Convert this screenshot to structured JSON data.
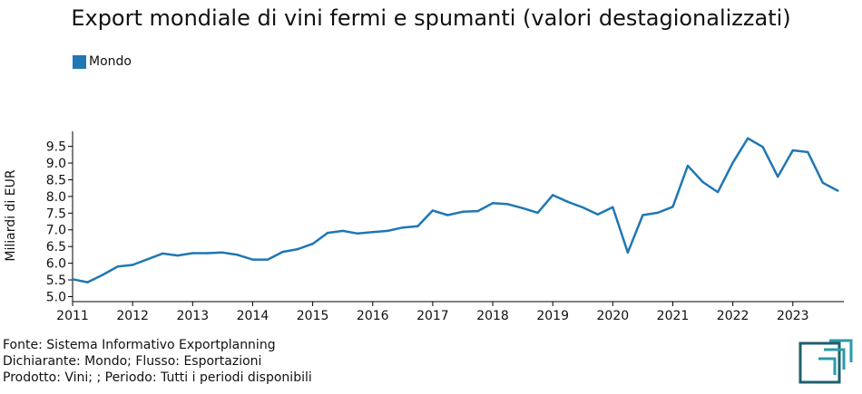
{
  "chart_data": {
    "type": "line",
    "title": "Export mondiale di vini fermi e spumanti (valori destagionalizzati)",
    "ylabel": "Miliardi di EUR",
    "xlabel": "",
    "xlim": [
      2011,
      2023.85
    ],
    "ylim": [
      4.85,
      9.95
    ],
    "yticks": [
      "5.0",
      "5.5",
      "6.0",
      "6.5",
      "7.0",
      "7.5",
      "8.0",
      "8.5",
      "9.0",
      "9.5"
    ],
    "xticks": [
      "2011",
      "2012",
      "2013",
      "2014",
      "2015",
      "2016",
      "2017",
      "2018",
      "2019",
      "2020",
      "2021",
      "2022",
      "2023"
    ],
    "legend_position": "top-left",
    "series": [
      {
        "name": "Mondo",
        "color": "#1f77b4",
        "x": [
          2011.0,
          2011.25,
          2011.5,
          2011.75,
          2012.0,
          2012.25,
          2012.5,
          2012.75,
          2013.0,
          2013.25,
          2013.5,
          2013.75,
          2014.0,
          2014.25,
          2014.5,
          2014.75,
          2015.0,
          2015.25,
          2015.5,
          2015.75,
          2016.0,
          2016.25,
          2016.5,
          2016.75,
          2017.0,
          2017.25,
          2017.5,
          2017.75,
          2018.0,
          2018.25,
          2018.5,
          2018.75,
          2019.0,
          2019.25,
          2019.5,
          2019.75,
          2020.0,
          2020.25,
          2020.5,
          2020.75,
          2021.0,
          2021.25,
          2021.5,
          2021.75,
          2022.0,
          2022.25,
          2022.5,
          2022.75,
          2023.0,
          2023.25,
          2023.5,
          2023.75
        ],
        "values": [
          5.52,
          5.43,
          5.65,
          5.9,
          5.95,
          6.12,
          6.29,
          6.23,
          6.3,
          6.3,
          6.32,
          6.25,
          6.11,
          6.11,
          6.34,
          6.42,
          6.58,
          6.91,
          6.97,
          6.89,
          6.93,
          6.97,
          7.07,
          7.11,
          7.58,
          7.44,
          7.54,
          7.56,
          7.8,
          7.77,
          7.65,
          7.51,
          8.04,
          7.84,
          7.67,
          7.46,
          7.68,
          6.32,
          7.44,
          7.51,
          7.69,
          8.92,
          8.43,
          8.13,
          9.01,
          9.74,
          9.48,
          8.59,
          9.38,
          9.33,
          8.41,
          8.17
        ]
      }
    ]
  },
  "footer": {
    "source": "Fonte: Sistema Informativo Exportplanning",
    "declarant": "Dichiarante: Mondo; Flusso: Esportazioni",
    "product": "Prodotto: Vini; ; Periodo: Tutti i periodi disponibili"
  },
  "logo": {
    "icon": "exportplanning-logo-icon",
    "color_dark": "#1f5f6e",
    "color_light": "#2a9aa8"
  }
}
